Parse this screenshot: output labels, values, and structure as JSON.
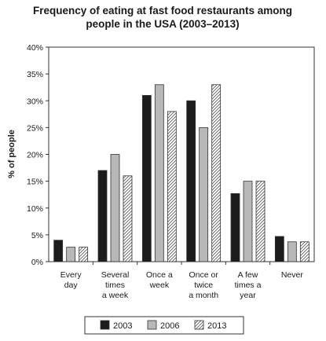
{
  "chart_data": {
    "type": "bar",
    "title_lines": [
      "Frequency of eating at fast food restaurants among",
      "people in the USA (2003–2013)"
    ],
    "ylabel": "% of people",
    "xlabel": "",
    "ylim": [
      0,
      40
    ],
    "yticks": [
      "0%",
      "5%",
      "10%",
      "15%",
      "20%",
      "25%",
      "30%",
      "35%",
      "40%"
    ],
    "categories": [
      [
        "Every",
        "day"
      ],
      [
        "Several",
        "times",
        "a week"
      ],
      [
        "Once a",
        "week"
      ],
      [
        "Once or",
        "twice",
        "a month"
      ],
      [
        "A few",
        "times a",
        "year"
      ],
      [
        "Never"
      ]
    ],
    "series": [
      {
        "name": "2003",
        "values": [
          4,
          17,
          31,
          30,
          12.7,
          4.7
        ],
        "fill": "#1c1c1c",
        "pattern": "solid"
      },
      {
        "name": "2006",
        "values": [
          2.7,
          20,
          33,
          25,
          15,
          3.7
        ],
        "fill": "#b8b8b8",
        "pattern": "solid"
      },
      {
        "name": "2013",
        "values": [
          2.7,
          16,
          28,
          33,
          15,
          3.7
        ],
        "fill": "#ffffff",
        "pattern": "hatch"
      }
    ],
    "grid": false,
    "legend": "bottom"
  }
}
